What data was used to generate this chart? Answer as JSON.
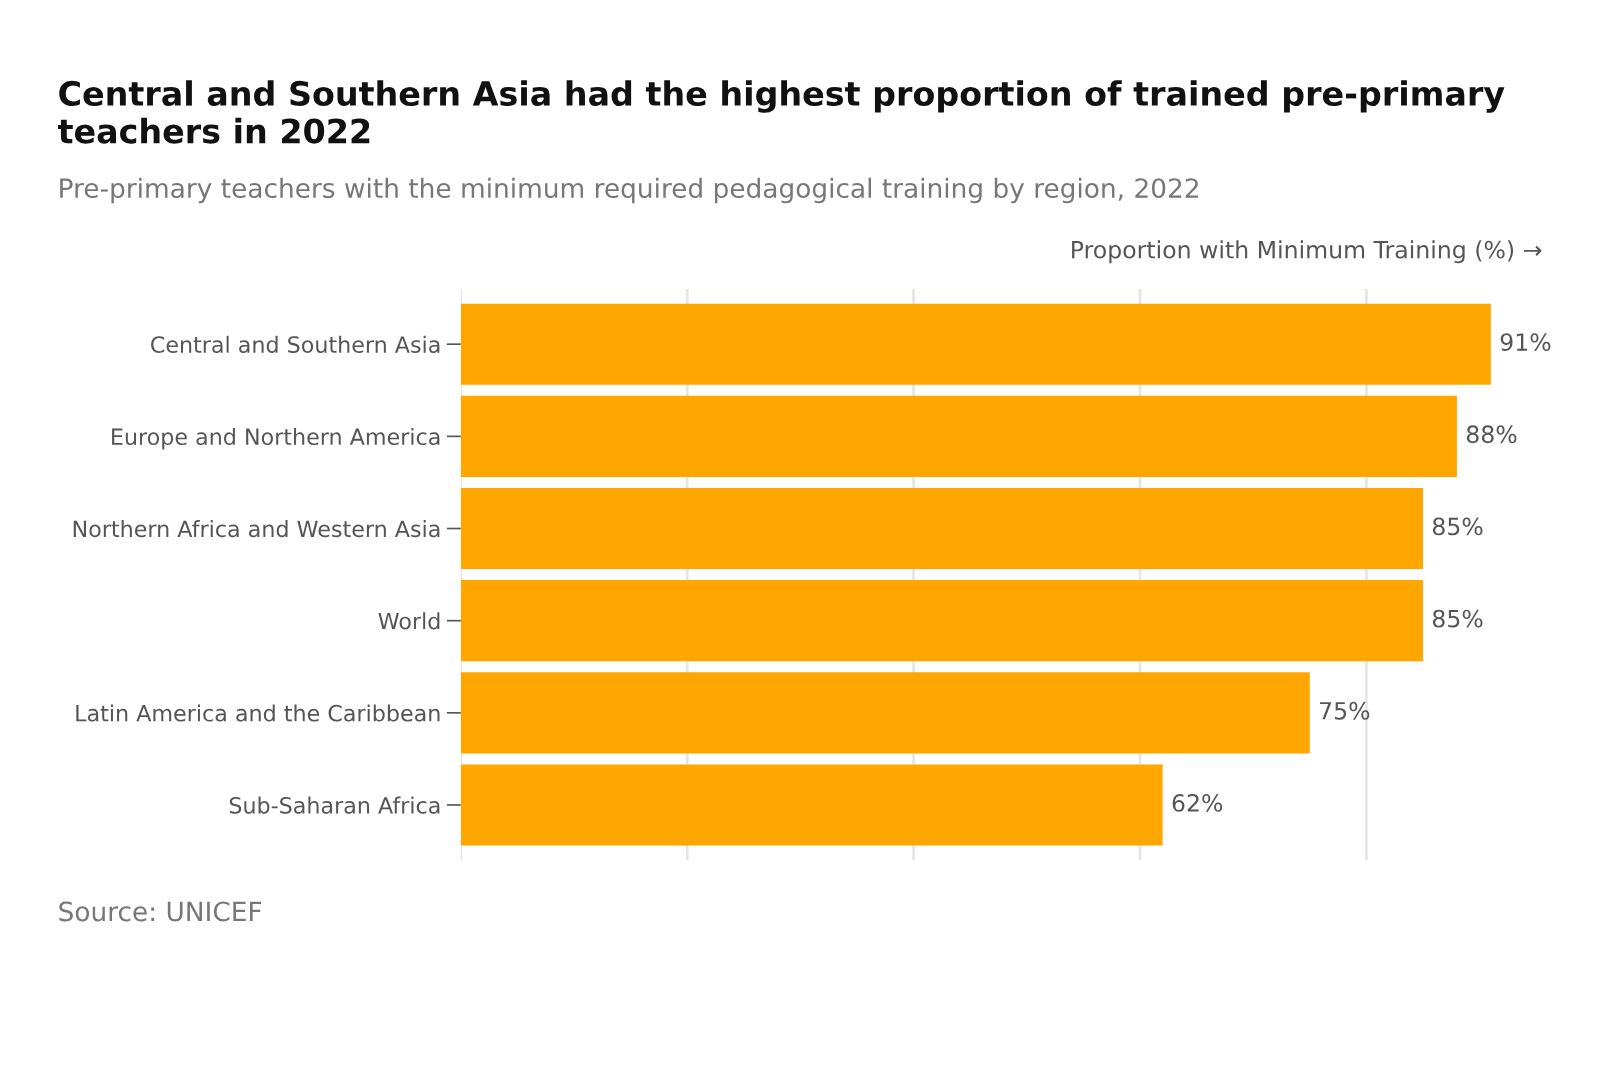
{
  "chart_data": {
    "type": "bar",
    "orientation": "horizontal",
    "title": "Central and Southern Asia had the highest proportion of trained pre-primary teachers in 2022",
    "subtitle": "Pre-primary teachers with the minimum required pedagogical training by region, 2022",
    "xlabel": "Proportion with Minimum Training (%) →",
    "categories": [
      "Central and Southern Asia",
      "Europe and Northern America",
      "Northern Africa and Western Asia",
      "World",
      "Latin America and the Caribbean",
      "Sub-Saharan Africa"
    ],
    "values": [
      91,
      88,
      85,
      85,
      75,
      62
    ],
    "value_labels": [
      "91%",
      "88%",
      "85%",
      "85%",
      "75%",
      "62%"
    ],
    "color": "#ffa600",
    "xticks": [
      {
        "value": 0,
        "label": null
      },
      {
        "value": 20,
        "label": null
      },
      {
        "value": 40,
        "label": null
      },
      {
        "value": 60,
        "label": null
      },
      {
        "value": 80,
        "label": null
      }
    ],
    "tick_labels": "y",
    "grid": "x",
    "annotations": [
      "Source: UNICEF"
    ]
  }
}
